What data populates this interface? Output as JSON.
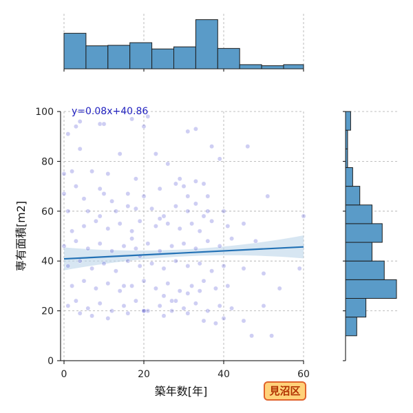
{
  "chart_data": {
    "type": "scatter",
    "xlabel": "築年数[年]",
    "ylabel": "専有面積[m2]",
    "xlim": [
      0,
      60
    ],
    "ylim": [
      0,
      100
    ],
    "x_ticks": [
      0,
      20,
      40,
      60
    ],
    "y_ticks": [
      0,
      20,
      40,
      60,
      80,
      100
    ],
    "grid": true,
    "annotation": "y=0.08x+40.86",
    "badge": "見沼区",
    "regression": {
      "slope": 0.08,
      "intercept": 40.86,
      "x_range": [
        0,
        60
      ]
    },
    "points": [
      [
        1,
        91
      ],
      [
        3,
        94
      ],
      [
        4,
        96
      ],
      [
        9,
        95
      ],
      [
        10,
        95
      ],
      [
        17,
        97
      ],
      [
        20,
        94
      ],
      [
        21,
        98
      ],
      [
        31,
        92
      ],
      [
        33,
        93
      ],
      [
        46,
        86
      ],
      [
        37,
        86
      ],
      [
        4,
        85
      ],
      [
        14,
        83
      ],
      [
        23,
        83
      ],
      [
        39,
        81
      ],
      [
        0,
        75
      ],
      [
        2,
        76
      ],
      [
        7,
        76
      ],
      [
        11,
        75
      ],
      [
        26,
        79
      ],
      [
        18,
        73
      ],
      [
        29,
        73
      ],
      [
        3,
        70
      ],
      [
        9,
        69
      ],
      [
        16,
        67
      ],
      [
        10,
        67
      ],
      [
        24,
        69
      ],
      [
        28,
        71
      ],
      [
        30,
        70
      ],
      [
        33,
        72
      ],
      [
        35,
        71
      ],
      [
        0,
        67
      ],
      [
        5,
        65
      ],
      [
        12,
        64
      ],
      [
        20,
        66
      ],
      [
        31,
        66
      ],
      [
        36,
        66
      ],
      [
        51,
        66
      ],
      [
        1,
        60
      ],
      [
        6,
        60
      ],
      [
        9,
        58
      ],
      [
        13,
        60
      ],
      [
        16,
        62
      ],
      [
        18,
        61
      ],
      [
        22,
        61
      ],
      [
        25,
        58
      ],
      [
        28,
        62
      ],
      [
        31,
        60
      ],
      [
        33,
        63
      ],
      [
        36,
        60
      ],
      [
        40,
        60
      ],
      [
        2,
        52
      ],
      [
        5,
        54
      ],
      [
        8,
        56
      ],
      [
        11,
        53
      ],
      [
        14,
        55
      ],
      [
        17,
        52
      ],
      [
        19,
        56
      ],
      [
        23,
        54
      ],
      [
        26,
        55
      ],
      [
        29,
        53
      ],
      [
        32,
        55
      ],
      [
        34,
        52
      ],
      [
        37,
        56
      ],
      [
        41,
        54
      ],
      [
        45,
        55
      ],
      [
        0,
        46
      ],
      [
        3,
        48
      ],
      [
        6,
        45
      ],
      [
        9,
        47
      ],
      [
        12,
        44
      ],
      [
        15,
        46
      ],
      [
        18,
        45
      ],
      [
        21,
        47
      ],
      [
        24,
        44
      ],
      [
        27,
        46
      ],
      [
        30,
        47
      ],
      [
        33,
        45
      ],
      [
        36,
        48
      ],
      [
        39,
        46
      ],
      [
        42,
        49
      ],
      [
        48,
        48
      ],
      [
        1,
        38
      ],
      [
        4,
        40
      ],
      [
        7,
        37
      ],
      [
        10,
        39
      ],
      [
        13,
        36
      ],
      [
        16,
        40
      ],
      [
        19,
        38
      ],
      [
        22,
        39
      ],
      [
        25,
        37
      ],
      [
        28,
        40
      ],
      [
        31,
        38
      ],
      [
        34,
        39
      ],
      [
        37,
        36
      ],
      [
        40,
        38
      ],
      [
        45,
        37
      ],
      [
        50,
        35
      ],
      [
        59,
        37
      ],
      [
        2,
        30
      ],
      [
        5,
        32
      ],
      [
        8,
        29
      ],
      [
        11,
        31
      ],
      [
        14,
        28
      ],
      [
        17,
        30
      ],
      [
        20,
        32
      ],
      [
        23,
        29
      ],
      [
        26,
        31
      ],
      [
        29,
        28
      ],
      [
        32,
        30
      ],
      [
        35,
        32
      ],
      [
        38,
        29
      ],
      [
        41,
        30
      ],
      [
        54,
        29
      ],
      [
        1,
        22
      ],
      [
        3,
        24
      ],
      [
        6,
        21
      ],
      [
        9,
        23
      ],
      [
        12,
        20
      ],
      [
        15,
        22
      ],
      [
        18,
        24
      ],
      [
        21,
        20
      ],
      [
        24,
        22
      ],
      [
        27,
        24
      ],
      [
        30,
        21
      ],
      [
        33,
        23
      ],
      [
        36,
        20
      ],
      [
        39,
        22
      ],
      [
        42,
        21
      ],
      [
        50,
        22
      ],
      [
        4,
        19
      ],
      [
        7,
        18
      ],
      [
        11,
        17
      ],
      [
        16,
        19
      ],
      [
        20,
        20
      ],
      [
        25,
        18
      ],
      [
        31,
        19
      ],
      [
        35,
        16
      ],
      [
        38,
        15
      ],
      [
        40,
        17
      ],
      [
        45,
        16
      ],
      [
        47,
        10
      ],
      [
        52,
        10
      ],
      [
        60,
        58
      ],
      [
        20,
        20
      ],
      [
        27,
        20
      ],
      [
        31,
        27
      ],
      [
        34,
        28
      ],
      [
        28,
        24
      ],
      [
        25,
        26
      ],
      [
        15,
        30
      ],
      [
        19,
        42
      ],
      [
        17,
        49
      ],
      [
        24,
        57
      ],
      [
        35,
        58
      ]
    ],
    "top_hist": {
      "bins": [
        0,
        5.5,
        11,
        16.5,
        22,
        27.5,
        33,
        38.5,
        44,
        49.5,
        55,
        60.5
      ],
      "heights": [
        0.68,
        0.44,
        0.45,
        0.5,
        0.38,
        0.42,
        0.94,
        0.39,
        0.08,
        0.06,
        0.08
      ]
    },
    "right_hist": {
      "bins": [
        10,
        17.5,
        25,
        32.5,
        40,
        47.5,
        55,
        62.5,
        70,
        77.5,
        85,
        92.5,
        100
      ],
      "heights": [
        0.11,
        0.2,
        0.5,
        0.38,
        0.26,
        0.36,
        0.26,
        0.14,
        0.07,
        0.02,
        0.02,
        0.05,
        0.03
      ]
    },
    "colors": {
      "scatter": "#3a3ad0",
      "regression": "#2271b5",
      "band": "#bdd5ea",
      "hist_fill": "#5a9bc8",
      "hist_edge": "#1c1c1c",
      "grid": "#aaaaaa",
      "badge_fill": "#ffd27a",
      "badge_edge": "#e0622b",
      "badge_text": "#b03000"
    }
  }
}
